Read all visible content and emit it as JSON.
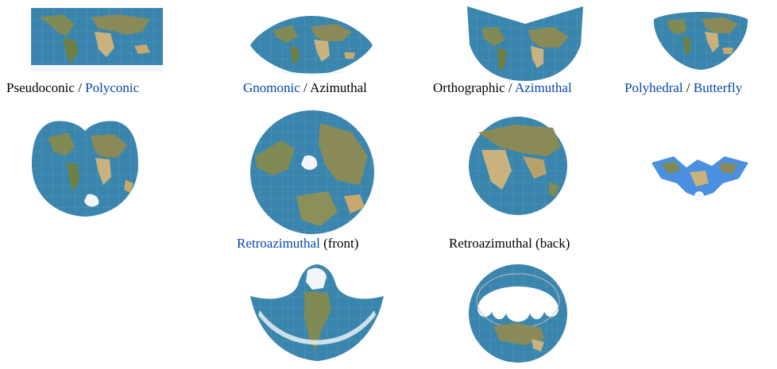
{
  "colors": {
    "ocean": "#3a85ad",
    "land": "#7f8a55",
    "desert": "#c9b27d",
    "ice": "#f2f6f8",
    "link": "#0645ad",
    "text": "#000000"
  },
  "row1": {
    "pseudoconic": {
      "plain": "Pseudoconic",
      "sep": " / ",
      "link": "Polyconic"
    },
    "azimuthal": {
      "link": "Gnomonic",
      "sep": " / ",
      "plain": "Azimuthal"
    },
    "orthographic": {
      "plain": "Orthographic",
      "sep": " / ",
      "link": "Azimuthal"
    },
    "polyhedral": {
      "link1": "Polyhedral",
      "sep": " / ",
      "link2": "Butterfly"
    }
  },
  "row2": {
    "retro_front": {
      "link": "Retroazimuthal",
      "plain": " (front)"
    },
    "retro_back": {
      "text": "Retroazimuthal (back)"
    }
  },
  "maps": [
    "equirectangular-map",
    "sinusoidal-map",
    "conic-map",
    "bonne-map",
    "american-polyconic-map",
    "gnomonic-azimuthal-map",
    "orthographic-globe-map",
    "butterfly-map",
    "retroazimuthal-front-map",
    "retroazimuthal-back-map"
  ]
}
